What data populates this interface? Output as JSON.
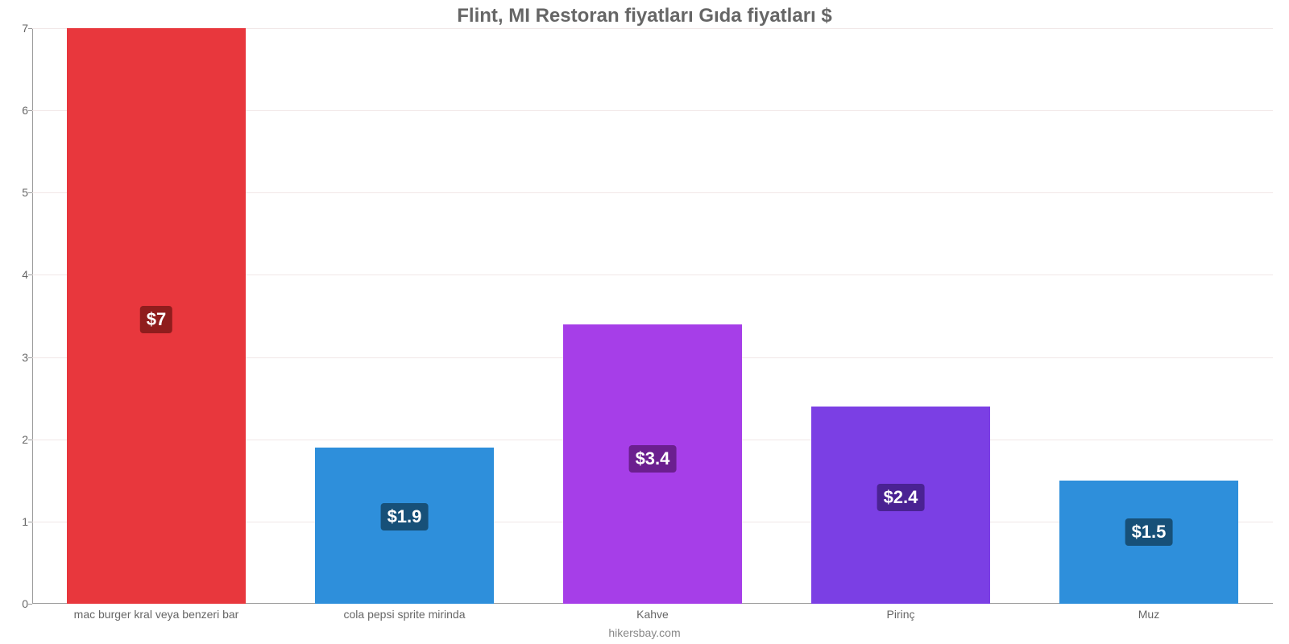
{
  "chart": {
    "type": "bar",
    "title": "Flint, MI Restoran fiyatları Gıda fiyatları $",
    "title_color": "#666666",
    "title_fontsize": 24,
    "background_color": "#ffffff",
    "grid_color": "#f1e7e7",
    "axis_color": "#9a9a9a",
    "tick_label_color": "#666666",
    "tick_label_fontsize": 14,
    "value_label_fontsize": 22,
    "value_label_text_color": "#ffffff",
    "footer": "hikersbay.com",
    "footer_color": "#888888",
    "ylim": [
      0,
      7
    ],
    "yticks": [
      0,
      1,
      2,
      3,
      4,
      5,
      6,
      7
    ],
    "categories": [
      "mac burger kral veya benzeri bar",
      "cola pepsi sprite mirinda",
      "Kahve",
      "Pirinç",
      "Muz"
    ],
    "values": [
      7,
      1.9,
      3.4,
      2.4,
      1.5
    ],
    "value_labels": [
      "$7",
      "$1.9",
      "$3.4",
      "$2.4",
      "$1.5"
    ],
    "bar_colors": [
      "#e8373d",
      "#2e8fdb",
      "#a63ee8",
      "#7b3fe4",
      "#2e8fdb"
    ],
    "badge_colors": [
      "#8f1d1d",
      "#175078",
      "#6b1f8f",
      "#4a2293",
      "#175078"
    ],
    "bar_width_pct": 72,
    "column_count": 5
  }
}
